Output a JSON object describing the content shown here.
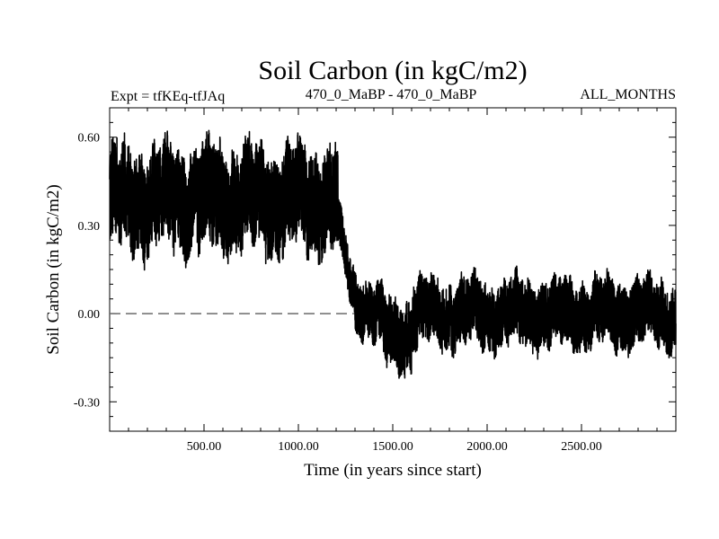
{
  "chart_data": {
    "type": "line",
    "title": "Soil Carbon (in kgC/m2)",
    "subtitle_left": "Expt = tfKEq-tfJAq",
    "subtitle_center": "470_0_MaBP - 470_0_MaBP",
    "subtitle_right": "ALL_MONTHS",
    "xlabel": "Time (in years since start)",
    "ylabel": "Soil Carbon (in kgC/m2)",
    "xlim": [
      0,
      3000
    ],
    "ylim": [
      -0.4,
      0.7
    ],
    "x_ticks": [
      500,
      1000,
      1500,
      2000,
      2500
    ],
    "x_tick_labels": [
      "500.00",
      "1000.00",
      "1500.00",
      "2000.00",
      "2500.00"
    ],
    "y_ticks": [
      -0.3,
      0.0,
      0.3,
      0.6
    ],
    "y_tick_labels": [
      "-0.30",
      "0.00",
      "0.30",
      "0.60"
    ],
    "reference_line": {
      "y": 0.0,
      "style": "dashed"
    },
    "grid": false,
    "line_color": "#000000",
    "series": [
      {
        "segments": [
          {
            "x_start": 0,
            "x_end": 1210,
            "mean": 0.39,
            "noise": 0.26,
            "min": 0.09,
            "max": 0.66
          },
          {
            "x_start": 1210,
            "x_end": 1300,
            "mean_start": 0.3,
            "mean_end": 0.05,
            "noise": 0.12
          },
          {
            "x_start": 1300,
            "x_end": 1450,
            "mean_start": 0.05,
            "mean_end": -0.02,
            "noise": 0.15
          },
          {
            "x_start": 1450,
            "x_end": 1600,
            "mean": -0.07,
            "noise": 0.18,
            "min": -0.26,
            "max": 0.12
          },
          {
            "x_start": 1600,
            "x_end": 3000,
            "mean": 0.0,
            "noise": 0.17,
            "min": -0.21,
            "max": 0.27
          }
        ]
      }
    ]
  }
}
